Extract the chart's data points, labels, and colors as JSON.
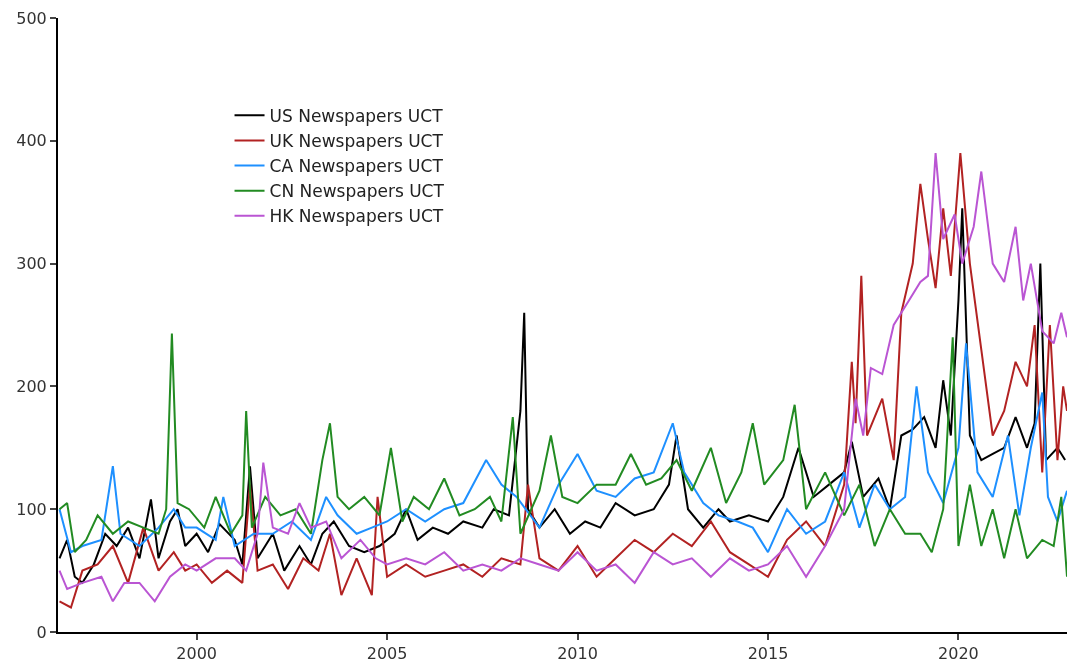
{
  "chart_data": {
    "type": "line",
    "xlim": [
      1996.36,
      2022.85
    ],
    "ylim": [
      0,
      500
    ],
    "xticks": [
      2000,
      2005,
      2010,
      2015,
      2020
    ],
    "yticks": [
      0,
      100,
      200,
      300,
      400,
      500
    ],
    "legend": "top left",
    "marker": "none",
    "line_style": "solid",
    "series": [
      {
        "name": "US Newspapers UCT",
        "color": "#000000",
        "x": [
          1996.4,
          1996.6,
          1996.8,
          1997.0,
          1997.3,
          1997.6,
          1997.9,
          1998.2,
          1998.5,
          1998.8,
          1999.0,
          1999.3,
          1999.5,
          1999.7,
          2000.0,
          2000.3,
          2000.6,
          2001.0,
          2001.2,
          2001.4,
          2001.6,
          2002.0,
          2002.3,
          2002.7,
          2003.0,
          2003.3,
          2003.6,
          2004.0,
          2004.4,
          2004.8,
          2005.2,
          2005.5,
          2005.8,
          2006.2,
          2006.6,
          2007.0,
          2007.5,
          2007.8,
          2008.2,
          2008.5,
          2008.6,
          2008.7,
          2009.0,
          2009.4,
          2009.8,
          2010.2,
          2010.6,
          2011.0,
          2011.5,
          2012.0,
          2012.4,
          2012.6,
          2012.9,
          2013.3,
          2013.7,
          2014.0,
          2014.5,
          2015.0,
          2015.4,
          2015.8,
          2016.2,
          2016.6,
          2017.0,
          2017.2,
          2017.5,
          2017.9,
          2018.2,
          2018.5,
          2018.8,
          2019.1,
          2019.4,
          2019.6,
          2019.8,
          2020.0,
          2020.1,
          2020.3,
          2020.6,
          2020.9,
          2021.2,
          2021.5,
          2021.8,
          2022.0,
          2022.15,
          2022.3,
          2022.6,
          2022.8
        ],
        "values": [
          60,
          75,
          45,
          40,
          55,
          80,
          70,
          85,
          60,
          108,
          60,
          90,
          100,
          70,
          80,
          65,
          88,
          75,
          55,
          135,
          60,
          80,
          50,
          70,
          55,
          80,
          90,
          70,
          65,
          70,
          80,
          100,
          75,
          85,
          80,
          90,
          85,
          100,
          95,
          180,
          260,
          100,
          85,
          100,
          80,
          90,
          85,
          105,
          95,
          100,
          120,
          160,
          100,
          85,
          100,
          90,
          95,
          90,
          110,
          150,
          110,
          120,
          130,
          155,
          110,
          125,
          100,
          160,
          165,
          175,
          150,
          205,
          160,
          270,
          345,
          160,
          140,
          145,
          150,
          175,
          150,
          170,
          300,
          140,
          150,
          140
        ]
      },
      {
        "name": "UK Newspapers UCT",
        "color": "#b22222",
        "x": [
          1996.4,
          1996.7,
          1997.0,
          1997.4,
          1997.8,
          1998.2,
          1998.6,
          1999.0,
          1999.4,
          1999.7,
          2000.0,
          2000.4,
          2000.8,
          2001.2,
          2001.4,
          2001.6,
          2002.0,
          2002.4,
          2002.8,
          2003.2,
          2003.5,
          2003.8,
          2004.2,
          2004.6,
          2004.75,
          2005.0,
          2005.5,
          2006.0,
          2006.5,
          2007.0,
          2007.5,
          2008.0,
          2008.5,
          2008.7,
          2009.0,
          2009.5,
          2010.0,
          2010.5,
          2011.0,
          2011.5,
          2012.0,
          2012.5,
          2013.0,
          2013.5,
          2014.0,
          2014.5,
          2015.0,
          2015.5,
          2016.0,
          2016.5,
          2017.0,
          2017.2,
          2017.3,
          2017.45,
          2017.6,
          2018.0,
          2018.3,
          2018.5,
          2018.8,
          2019.0,
          2019.2,
          2019.4,
          2019.6,
          2019.8,
          2020.05,
          2020.3,
          2020.6,
          2020.9,
          2021.2,
          2021.5,
          2021.8,
          2022.0,
          2022.2,
          2022.4,
          2022.6,
          2022.75,
          2022.85
        ],
        "values": [
          25,
          20,
          50,
          55,
          70,
          40,
          85,
          50,
          65,
          50,
          55,
          40,
          50,
          40,
          120,
          50,
          55,
          35,
          60,
          50,
          80,
          30,
          60,
          30,
          110,
          45,
          55,
          45,
          50,
          55,
          45,
          60,
          55,
          120,
          60,
          50,
          70,
          45,
          60,
          75,
          65,
          80,
          70,
          90,
          65,
          55,
          45,
          75,
          90,
          70,
          120,
          220,
          170,
          290,
          160,
          190,
          140,
          260,
          300,
          365,
          320,
          280,
          345,
          290,
          390,
          300,
          230,
          160,
          180,
          220,
          200,
          250,
          130,
          250,
          140,
          200,
          180
        ]
      },
      {
        "name": "CA Newspapers UCT",
        "color": "#1e90ff",
        "x": [
          1996.4,
          1996.7,
          1997.0,
          1997.5,
          1997.8,
          1998.0,
          1998.5,
          1999.0,
          1999.4,
          1999.7,
          2000.0,
          2000.5,
          2000.7,
          2001.0,
          2001.5,
          2002.0,
          2002.5,
          2003.0,
          2003.4,
          2003.7,
          2004.2,
          2004.6,
          2005.0,
          2005.5,
          2006.0,
          2006.5,
          2007.0,
          2007.6,
          2008.0,
          2008.4,
          2009.0,
          2009.5,
          2010.0,
          2010.5,
          2011.0,
          2011.5,
          2012.0,
          2012.5,
          2012.8,
          2013.3,
          2013.7,
          2014.2,
          2014.6,
          2015.0,
          2015.5,
          2016.0,
          2016.5,
          2017.0,
          2017.4,
          2017.8,
          2018.2,
          2018.6,
          2018.9,
          2019.2,
          2019.6,
          2020.0,
          2020.2,
          2020.5,
          2020.9,
          2021.3,
          2021.6,
          2021.9,
          2022.2,
          2022.35,
          2022.6,
          2022.85
        ],
        "values": [
          100,
          65,
          70,
          75,
          135,
          80,
          70,
          85,
          100,
          85,
          85,
          75,
          110,
          70,
          80,
          80,
          90,
          75,
          110,
          95,
          80,
          85,
          90,
          100,
          90,
          100,
          105,
          140,
          120,
          110,
          85,
          120,
          145,
          115,
          110,
          125,
          130,
          170,
          130,
          105,
          95,
          90,
          85,
          65,
          100,
          80,
          90,
          130,
          85,
          120,
          100,
          110,
          200,
          130,
          105,
          150,
          235,
          130,
          110,
          160,
          95,
          150,
          195,
          110,
          90,
          115
        ]
      },
      {
        "name": "CN Newspapers UCT",
        "color": "#228b22",
        "x": [
          1996.4,
          1996.6,
          1996.8,
          1997.1,
          1997.4,
          1997.8,
          1998.2,
          1998.6,
          1999.0,
          1999.2,
          1999.35,
          1999.5,
          1999.8,
          2000.2,
          2000.5,
          2000.9,
          2001.2,
          2001.3,
          2001.45,
          2001.8,
          2002.2,
          2002.6,
          2003.0,
          2003.3,
          2003.5,
          2003.7,
          2004.0,
          2004.4,
          2004.8,
          2005.1,
          2005.4,
          2005.7,
          2006.1,
          2006.5,
          2006.9,
          2007.3,
          2007.7,
          2008.0,
          2008.3,
          2008.5,
          2009.0,
          2009.3,
          2009.6,
          2010.0,
          2010.5,
          2011.0,
          2011.4,
          2011.8,
          2012.2,
          2012.6,
          2013.0,
          2013.5,
          2013.9,
          2014.3,
          2014.6,
          2014.9,
          2015.4,
          2015.7,
          2016.0,
          2016.5,
          2017.0,
          2017.4,
          2017.8,
          2018.2,
          2018.6,
          2019.0,
          2019.3,
          2019.6,
          2019.85,
          2020.0,
          2020.3,
          2020.6,
          2020.9,
          2021.2,
          2021.5,
          2021.8,
          2022.2,
          2022.5,
          2022.7,
          2022.85
        ],
        "values": [
          100,
          105,
          65,
          75,
          95,
          80,
          90,
          85,
          80,
          100,
          243,
          105,
          100,
          85,
          110,
          80,
          95,
          180,
          85,
          110,
          95,
          100,
          80,
          140,
          170,
          110,
          100,
          110,
          95,
          150,
          90,
          110,
          100,
          125,
          95,
          100,
          110,
          90,
          175,
          80,
          115,
          160,
          110,
          105,
          120,
          120,
          145,
          120,
          125,
          140,
          115,
          150,
          105,
          130,
          170,
          120,
          140,
          185,
          100,
          130,
          95,
          120,
          70,
          100,
          80,
          80,
          65,
          100,
          240,
          70,
          120,
          70,
          100,
          60,
          100,
          60,
          75,
          70,
          110,
          45
        ]
      },
      {
        "name": "HK Newspapers UCT",
        "color": "#ba55d3",
        "x": [
          1996.4,
          1996.6,
          1997.0,
          1997.5,
          1997.8,
          1998.1,
          1998.5,
          1998.9,
          1999.3,
          1999.7,
          2000.0,
          2000.5,
          2001.0,
          2001.3,
          2001.6,
          2001.75,
          2002.0,
          2002.4,
          2002.7,
          2003.0,
          2003.4,
          2003.8,
          2004.3,
          2004.7,
          2005.0,
          2005.5,
          2006.0,
          2006.5,
          2007.0,
          2007.5,
          2008.0,
          2008.5,
          2009.0,
          2009.5,
          2010.0,
          2010.5,
          2011.0,
          2011.5,
          2012.0,
          2012.5,
          2013.0,
          2013.5,
          2014.0,
          2014.5,
          2015.0,
          2015.5,
          2016.0,
          2016.5,
          2017.0,
          2017.3,
          2017.5,
          2017.7,
          2018.0,
          2018.3,
          2018.7,
          2019.0,
          2019.2,
          2019.4,
          2019.6,
          2019.9,
          2020.1,
          2020.4,
          2020.6,
          2020.9,
          2021.2,
          2021.5,
          2021.7,
          2021.9,
          2022.2,
          2022.5,
          2022.7,
          2022.85
        ],
        "values": [
          50,
          35,
          40,
          45,
          25,
          40,
          40,
          25,
          45,
          55,
          50,
          60,
          60,
          50,
          80,
          138,
          85,
          80,
          105,
          85,
          90,
          60,
          75,
          60,
          55,
          60,
          55,
          65,
          50,
          55,
          50,
          60,
          55,
          50,
          65,
          50,
          55,
          40,
          65,
          55,
          60,
          45,
          60,
          50,
          55,
          70,
          45,
          70,
          100,
          190,
          160,
          215,
          210,
          250,
          270,
          285,
          290,
          390,
          320,
          340,
          300,
          330,
          375,
          300,
          285,
          330,
          270,
          300,
          245,
          235,
          260,
          240
        ]
      }
    ]
  }
}
